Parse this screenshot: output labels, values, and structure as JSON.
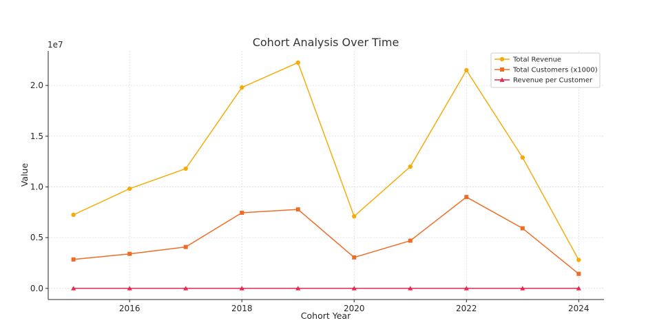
{
  "chart_data": {
    "type": "line",
    "title": "Cohort Analysis Over Time",
    "xlabel": "Cohort Year",
    "ylabel": "Value",
    "y_offset_label": "1e7",
    "x": [
      2015,
      2016,
      2017,
      2018,
      2019,
      2020,
      2021,
      2022,
      2023,
      2024
    ],
    "x_ticks": [
      2016,
      2018,
      2020,
      2022,
      2024
    ],
    "y_ticks": [
      0,
      5000000,
      10000000,
      15000000,
      20000000
    ],
    "y_tick_labels": [
      "0.0",
      "0.5",
      "1.0",
      "1.5",
      "2.0"
    ],
    "xlim": [
      2014.55,
      2024.45
    ],
    "ylim": [
      -1100000,
      23400000
    ],
    "grid": true,
    "legend_position": "top-right",
    "series": [
      {
        "name": "Total Revenue",
        "color": "#f5ac0b",
        "marker": "circle",
        "values": [
          7250000,
          9820000,
          11800000,
          19800000,
          22250000,
          7100000,
          12000000,
          21500000,
          12900000,
          2800000
        ]
      },
      {
        "name": "Total Customers (x1000)",
        "color": "#ef6c25",
        "marker": "square",
        "values": [
          2850000,
          3400000,
          4080000,
          7450000,
          7780000,
          3050000,
          4700000,
          9000000,
          5920000,
          1430000
        ]
      },
      {
        "name": "Revenue per Customer",
        "color": "#e8294a",
        "marker": "triangle",
        "values": [
          2.5,
          2.9,
          2.9,
          2.7,
          2.9,
          2.3,
          2.6,
          2.4,
          2.2,
          2.0
        ]
      }
    ]
  }
}
